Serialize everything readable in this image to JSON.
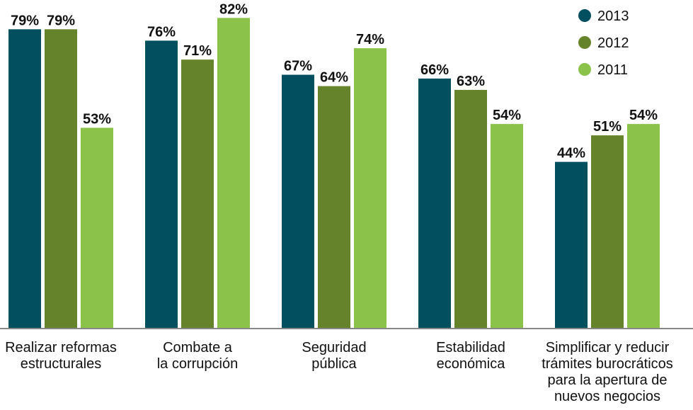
{
  "chart_data": {
    "type": "bar",
    "categories": [
      [
        "Realizar reformas",
        "estructurales"
      ],
      [
        "Combate a",
        "la corrupción"
      ],
      [
        "Seguridad",
        "pública"
      ],
      [
        "Estabilidad",
        "económica"
      ],
      [
        "Simplificar y reducir",
        "trámites burocráticos",
        "para la apertura de",
        "nuevos negocios"
      ]
    ],
    "series": [
      {
        "name": "2013",
        "color": "#00505f",
        "values": [
          79,
          76,
          67,
          66,
          44
        ],
        "labels": [
          "79%",
          "76%",
          "67%",
          "66%",
          "44%"
        ]
      },
      {
        "name": "2012",
        "color": "#64832a",
        "values": [
          79,
          71,
          64,
          63,
          51
        ],
        "labels": [
          "79%",
          "71%",
          "64%",
          "63%",
          "51%"
        ]
      },
      {
        "name": "2011",
        "color": "#8bc34a",
        "values": [
          53,
          82,
          74,
          54,
          54
        ],
        "labels": [
          "53%",
          "82%",
          "74%",
          "54%",
          "54%"
        ]
      }
    ],
    "ylim": [
      0,
      100
    ],
    "grid": false,
    "legend": "top-right",
    "title": "",
    "xlabel": "",
    "ylabel": ""
  }
}
